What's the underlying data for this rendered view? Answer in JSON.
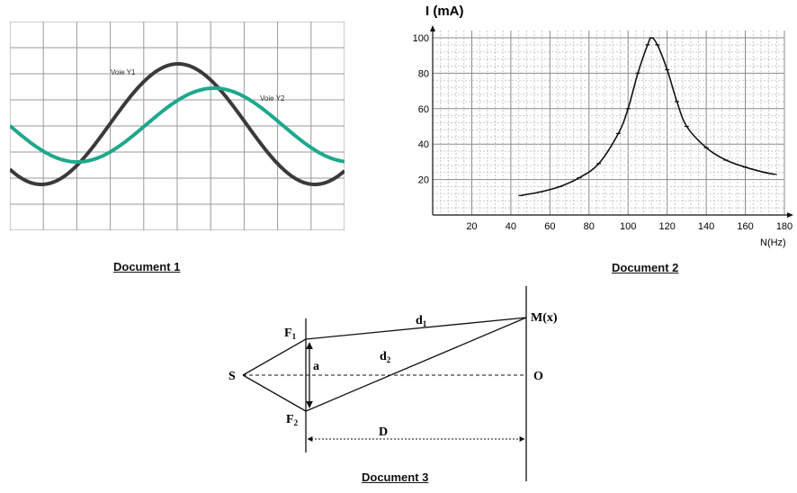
{
  "doc1": {
    "caption": "Document 1",
    "voie1_label": "Voie Y1",
    "voie2_label": "Voie Y2",
    "voie1_color": "#3a3a3a",
    "voie2_color": "#1ea88c"
  },
  "doc2": {
    "caption": "Document 2",
    "ylabel": "I (mA)",
    "xlabel": "N(Hz)",
    "y_ticks": [
      "20",
      "40",
      "60",
      "80",
      "100"
    ],
    "x_ticks": [
      "20",
      "40",
      "60",
      "80",
      "100",
      "120",
      "140",
      "160",
      "180"
    ]
  },
  "doc3": {
    "caption": "Document 3",
    "label_S": "S",
    "label_F1": "F",
    "label_F1_sub": "1",
    "label_F2": "F",
    "label_F2_sub": "2",
    "label_a": "a",
    "label_d1": "d",
    "label_d1_sub": "1",
    "label_d2": "d",
    "label_d2_sub": "2",
    "label_M": "M(x)",
    "label_O": "O",
    "label_D": "D"
  },
  "chart_data": {
    "type": "line",
    "title": "",
    "xlabel": "N(Hz)",
    "ylabel": "I (mA)",
    "xlim": [
      0,
      180
    ],
    "ylim": [
      0,
      100
    ],
    "grid": true,
    "series": [
      {
        "x": [
          45,
          55,
          65,
          75,
          85,
          95,
          100,
          105,
          110,
          112,
          115,
          120,
          125,
          130,
          140,
          150,
          160,
          170,
          175
        ],
        "y": [
          11,
          13,
          16,
          21,
          29,
          46,
          60,
          80,
          96,
          100,
          96,
          82,
          64,
          50,
          38,
          31,
          27,
          24,
          23
        ]
      }
    ]
  }
}
